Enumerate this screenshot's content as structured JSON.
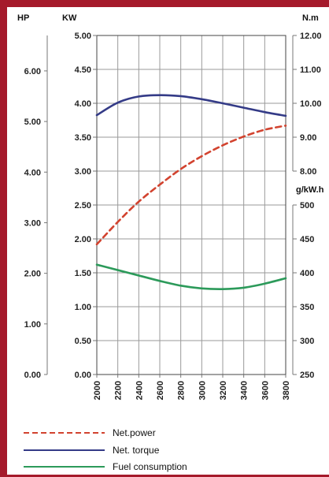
{
  "chart_data": {
    "type": "line",
    "units": {
      "hp": "HP",
      "kw": "KW",
      "nm": "N.m",
      "fuel": "g/kW.h"
    },
    "x": [
      2000,
      2200,
      2400,
      2600,
      2800,
      3000,
      3200,
      3400,
      3600,
      3800
    ],
    "x_tick_labels": [
      "2000",
      "2200",
      "2400",
      "2600",
      "2800",
      "3000",
      "3200",
      "3400",
      "3600",
      "3800"
    ],
    "xlim": [
      2000,
      3800
    ],
    "axes": {
      "hp": {
        "ticks": [
          "0.00",
          "1.00",
          "2.00",
          "3.00",
          "4.00",
          "5.00",
          "6.00"
        ],
        "ylim": [
          0,
          6.7
        ]
      },
      "kw": {
        "ticks": [
          "0.00",
          "0.50",
          "1.00",
          "1.50",
          "2.00",
          "2.50",
          "3.00",
          "3.50",
          "4.00",
          "4.50",
          "5.00"
        ],
        "ylim": [
          0,
          5
        ]
      },
      "nm": {
        "ticks": [
          "8.00",
          "9.00",
          "10.00",
          "11.00",
          "12.00"
        ],
        "ylim": [
          8,
          12
        ]
      },
      "fuel": {
        "ticks": [
          "250",
          "300",
          "350",
          "400",
          "450",
          "500"
        ],
        "ylim": [
          250,
          500
        ]
      }
    },
    "grid": true,
    "legend_position": "bottom",
    "series": [
      {
        "name": "Net.power",
        "axis": "kw",
        "style": "dashed",
        "color": "#d2432f",
        "values": [
          1.92,
          2.25,
          2.55,
          2.8,
          3.03,
          3.22,
          3.38,
          3.51,
          3.61,
          3.67
        ]
      },
      {
        "name": "Net. torque",
        "axis": "nm",
        "style": "solid",
        "color": "#343b87",
        "values": [
          9.65,
          10.02,
          10.2,
          10.24,
          10.21,
          10.12,
          10.0,
          9.87,
          9.74,
          9.63
        ]
      },
      {
        "name": "Fuel consumption",
        "axis": "fuel",
        "style": "solid",
        "color": "#2c9a5a",
        "values": [
          412,
          404,
          396,
          388,
          381,
          377,
          376,
          378,
          384,
          392
        ]
      }
    ]
  }
}
